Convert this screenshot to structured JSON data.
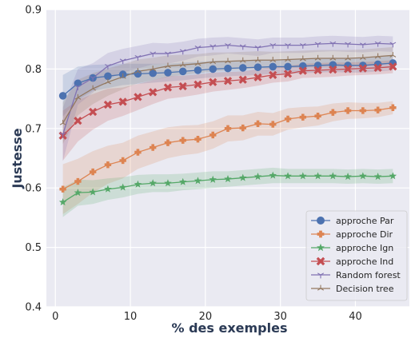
{
  "chart_data": {
    "type": "line",
    "title": "",
    "xlabel": "% des exemples",
    "ylabel": "Justesse",
    "xlim": [
      -1.2,
      47.2
    ],
    "ylim": [
      0.4,
      0.9
    ],
    "xticks": [
      0,
      10,
      20,
      30,
      40
    ],
    "yticks": [
      0.4,
      0.5,
      0.6,
      0.7,
      0.8,
      0.9
    ],
    "xtick_labels": [
      "0",
      "10",
      "20",
      "30",
      "40"
    ],
    "ytick_labels": [
      "0.4",
      "0.5",
      "0.6",
      "0.7",
      "0.8",
      "0.9"
    ],
    "grid": true,
    "legend_position": "bottom-right",
    "background": "#eaeaf2",
    "x": [
      1,
      3,
      5,
      7,
      9,
      11,
      13,
      15,
      17,
      19,
      21,
      23,
      25,
      27,
      29,
      31,
      33,
      35,
      37,
      39,
      41,
      43,
      45
    ],
    "series": [
      {
        "name": "approche Par",
        "color": "#4c72b0",
        "marker": "circle",
        "values": [
          0.755,
          0.776,
          0.785,
          0.788,
          0.791,
          0.792,
          0.793,
          0.794,
          0.796,
          0.798,
          0.8,
          0.801,
          0.802,
          0.803,
          0.804,
          0.804,
          0.805,
          0.806,
          0.807,
          0.806,
          0.806,
          0.808,
          0.81
        ],
        "band": [
          0.035,
          0.028,
          0.022,
          0.02,
          0.018,
          0.017,
          0.016,
          0.015,
          0.015,
          0.014,
          0.014,
          0.013,
          0.013,
          0.013,
          0.012,
          0.012,
          0.012,
          0.012,
          0.012,
          0.012,
          0.012,
          0.012,
          0.012
        ]
      },
      {
        "name": "approche Dir",
        "color": "#dd8452",
        "marker": "plus",
        "values": [
          0.598,
          0.611,
          0.627,
          0.639,
          0.646,
          0.66,
          0.668,
          0.676,
          0.68,
          0.682,
          0.689,
          0.7,
          0.701,
          0.708,
          0.707,
          0.716,
          0.719,
          0.721,
          0.727,
          0.73,
          0.73,
          0.731,
          0.735
        ],
        "band": [
          0.042,
          0.038,
          0.035,
          0.032,
          0.03,
          0.028,
          0.027,
          0.026,
          0.025,
          0.024,
          0.023,
          0.022,
          0.021,
          0.02,
          0.019,
          0.018,
          0.017,
          0.016,
          0.015,
          0.014,
          0.013,
          0.012,
          0.011
        ]
      },
      {
        "name": "approche Ign",
        "color": "#55a868",
        "marker": "star",
        "values": [
          0.576,
          0.592,
          0.593,
          0.598,
          0.601,
          0.606,
          0.608,
          0.608,
          0.61,
          0.612,
          0.614,
          0.615,
          0.617,
          0.619,
          0.621,
          0.62,
          0.62,
          0.62,
          0.62,
          0.619,
          0.62,
          0.619,
          0.62
        ],
        "band": [
          0.025,
          0.022,
          0.02,
          0.018,
          0.017,
          0.016,
          0.015,
          0.015,
          0.014,
          0.014,
          0.014,
          0.013,
          0.013,
          0.013,
          0.013,
          0.012,
          0.012,
          0.012,
          0.012,
          0.012,
          0.012,
          0.012,
          0.012
        ]
      },
      {
        "name": "approche Ind",
        "color": "#c44e52",
        "marker": "x",
        "values": [
          0.688,
          0.713,
          0.728,
          0.74,
          0.745,
          0.753,
          0.761,
          0.769,
          0.771,
          0.774,
          0.778,
          0.78,
          0.782,
          0.786,
          0.79,
          0.792,
          0.797,
          0.798,
          0.799,
          0.8,
          0.801,
          0.802,
          0.804
        ],
        "band": [
          0.042,
          0.035,
          0.03,
          0.027,
          0.024,
          0.022,
          0.02,
          0.019,
          0.018,
          0.017,
          0.016,
          0.015,
          0.014,
          0.014,
          0.013,
          0.013,
          0.012,
          0.012,
          0.012,
          0.011,
          0.011,
          0.011,
          0.011
        ]
      },
      {
        "name": "Random forest",
        "color": "#8172b3",
        "marker": "tri_down",
        "values": [
          0.69,
          0.77,
          0.785,
          0.805,
          0.814,
          0.82,
          0.826,
          0.826,
          0.83,
          0.836,
          0.838,
          0.84,
          0.838,
          0.836,
          0.84,
          0.84,
          0.84,
          0.842,
          0.843,
          0.842,
          0.841,
          0.843,
          0.842
        ],
        "band": [
          0.045,
          0.03,
          0.025,
          0.022,
          0.02,
          0.019,
          0.018,
          0.017,
          0.016,
          0.015,
          0.015,
          0.014,
          0.014,
          0.014,
          0.013,
          0.013,
          0.013,
          0.013,
          0.013,
          0.013,
          0.013,
          0.013,
          0.013
        ]
      },
      {
        "name": "Decision tree",
        "color": "#937860",
        "marker": "tri_up",
        "values": [
          0.709,
          0.752,
          0.767,
          0.778,
          0.787,
          0.796,
          0.8,
          0.805,
          0.807,
          0.809,
          0.812,
          0.813,
          0.814,
          0.815,
          0.815,
          0.816,
          0.817,
          0.818,
          0.818,
          0.818,
          0.819,
          0.821,
          0.823
        ],
        "band": [
          0.035,
          0.03,
          0.026,
          0.023,
          0.021,
          0.02,
          0.019,
          0.018,
          0.017,
          0.016,
          0.016,
          0.015,
          0.015,
          0.015,
          0.014,
          0.014,
          0.014,
          0.014,
          0.014,
          0.014,
          0.014,
          0.014,
          0.014
        ]
      }
    ]
  }
}
